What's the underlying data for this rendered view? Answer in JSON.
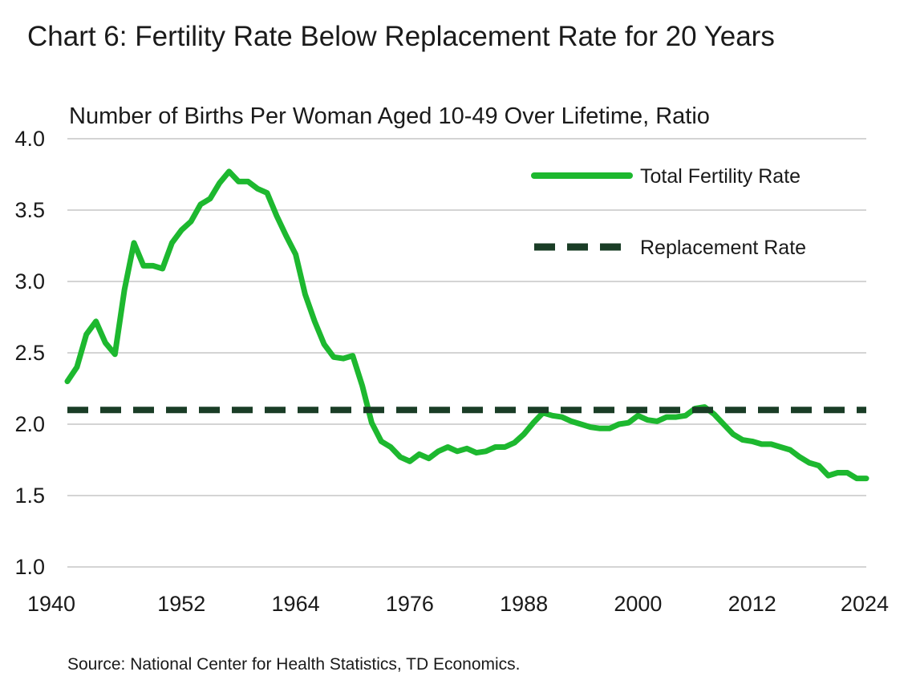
{
  "chart_data": {
    "type": "line",
    "title": "Chart 6: Fertility Rate Below Replacement Rate for 20 Years",
    "subtitle": "Number of Births Per Woman Aged 10-49 Over Lifetime, Ratio",
    "source": "Source: National Center for Health Statistics, TD Economics.",
    "xlim": [
      1940,
      2024
    ],
    "ylim": [
      1.0,
      4.0
    ],
    "x_ticks": [
      1940,
      1952,
      1964,
      1976,
      1988,
      2000,
      2012,
      2024
    ],
    "x_tick_labels": [
      "1940",
      "1952",
      "1964",
      "1976",
      "1988",
      "2000",
      "2012",
      "2024"
    ],
    "y_ticks": [
      1.0,
      1.5,
      2.0,
      2.5,
      3.0,
      3.5,
      4.0
    ],
    "y_tick_labels": [
      "1.0",
      "1.5",
      "2.0",
      "2.5",
      "3.0",
      "3.5",
      "4.0"
    ],
    "grid": "horizontal",
    "legend_position": "top-right",
    "series": [
      {
        "name": "Total Fertility Rate",
        "color": "#1db82f",
        "style": "solid",
        "x": [
          1940,
          1941,
          1942,
          1943,
          1944,
          1945,
          1946,
          1947,
          1948,
          1949,
          1950,
          1951,
          1952,
          1953,
          1954,
          1955,
          1956,
          1957,
          1958,
          1959,
          1960,
          1961,
          1962,
          1963,
          1964,
          1965,
          1966,
          1967,
          1968,
          1969,
          1970,
          1971,
          1972,
          1973,
          1974,
          1975,
          1976,
          1977,
          1978,
          1979,
          1980,
          1981,
          1982,
          1983,
          1984,
          1985,
          1986,
          1987,
          1988,
          1989,
          1990,
          1991,
          1992,
          1993,
          1994,
          1995,
          1996,
          1997,
          1998,
          1999,
          2000,
          2001,
          2002,
          2003,
          2004,
          2005,
          2006,
          2007,
          2008,
          2009,
          2010,
          2011,
          2012,
          2013,
          2014,
          2015,
          2016,
          2017,
          2018,
          2019,
          2020,
          2021,
          2022,
          2023,
          2024
        ],
        "values": [
          2.3,
          2.4,
          2.63,
          2.72,
          2.57,
          2.49,
          2.94,
          3.27,
          3.11,
          3.11,
          3.09,
          3.27,
          3.36,
          3.42,
          3.54,
          3.58,
          3.69,
          3.77,
          3.7,
          3.7,
          3.65,
          3.62,
          3.46,
          3.32,
          3.19,
          2.91,
          2.72,
          2.56,
          2.47,
          2.46,
          2.48,
          2.27,
          2.01,
          1.88,
          1.84,
          1.77,
          1.74,
          1.79,
          1.76,
          1.81,
          1.84,
          1.81,
          1.83,
          1.8,
          1.81,
          1.84,
          1.84,
          1.87,
          1.93,
          2.01,
          2.08,
          2.06,
          2.05,
          2.02,
          2.0,
          1.98,
          1.97,
          1.97,
          2.0,
          2.01,
          2.06,
          2.03,
          2.02,
          2.05,
          2.05,
          2.06,
          2.11,
          2.12,
          2.07,
          2.0,
          1.93,
          1.89,
          1.88,
          1.86,
          1.86,
          1.84,
          1.82,
          1.77,
          1.73,
          1.71,
          1.64,
          1.66,
          1.66,
          1.62,
          1.62
        ]
      },
      {
        "name": "Replacement Rate",
        "color": "#1a3d26",
        "style": "dashed",
        "x": [
          1940,
          2024
        ],
        "values": [
          2.1,
          2.1
        ]
      }
    ]
  }
}
